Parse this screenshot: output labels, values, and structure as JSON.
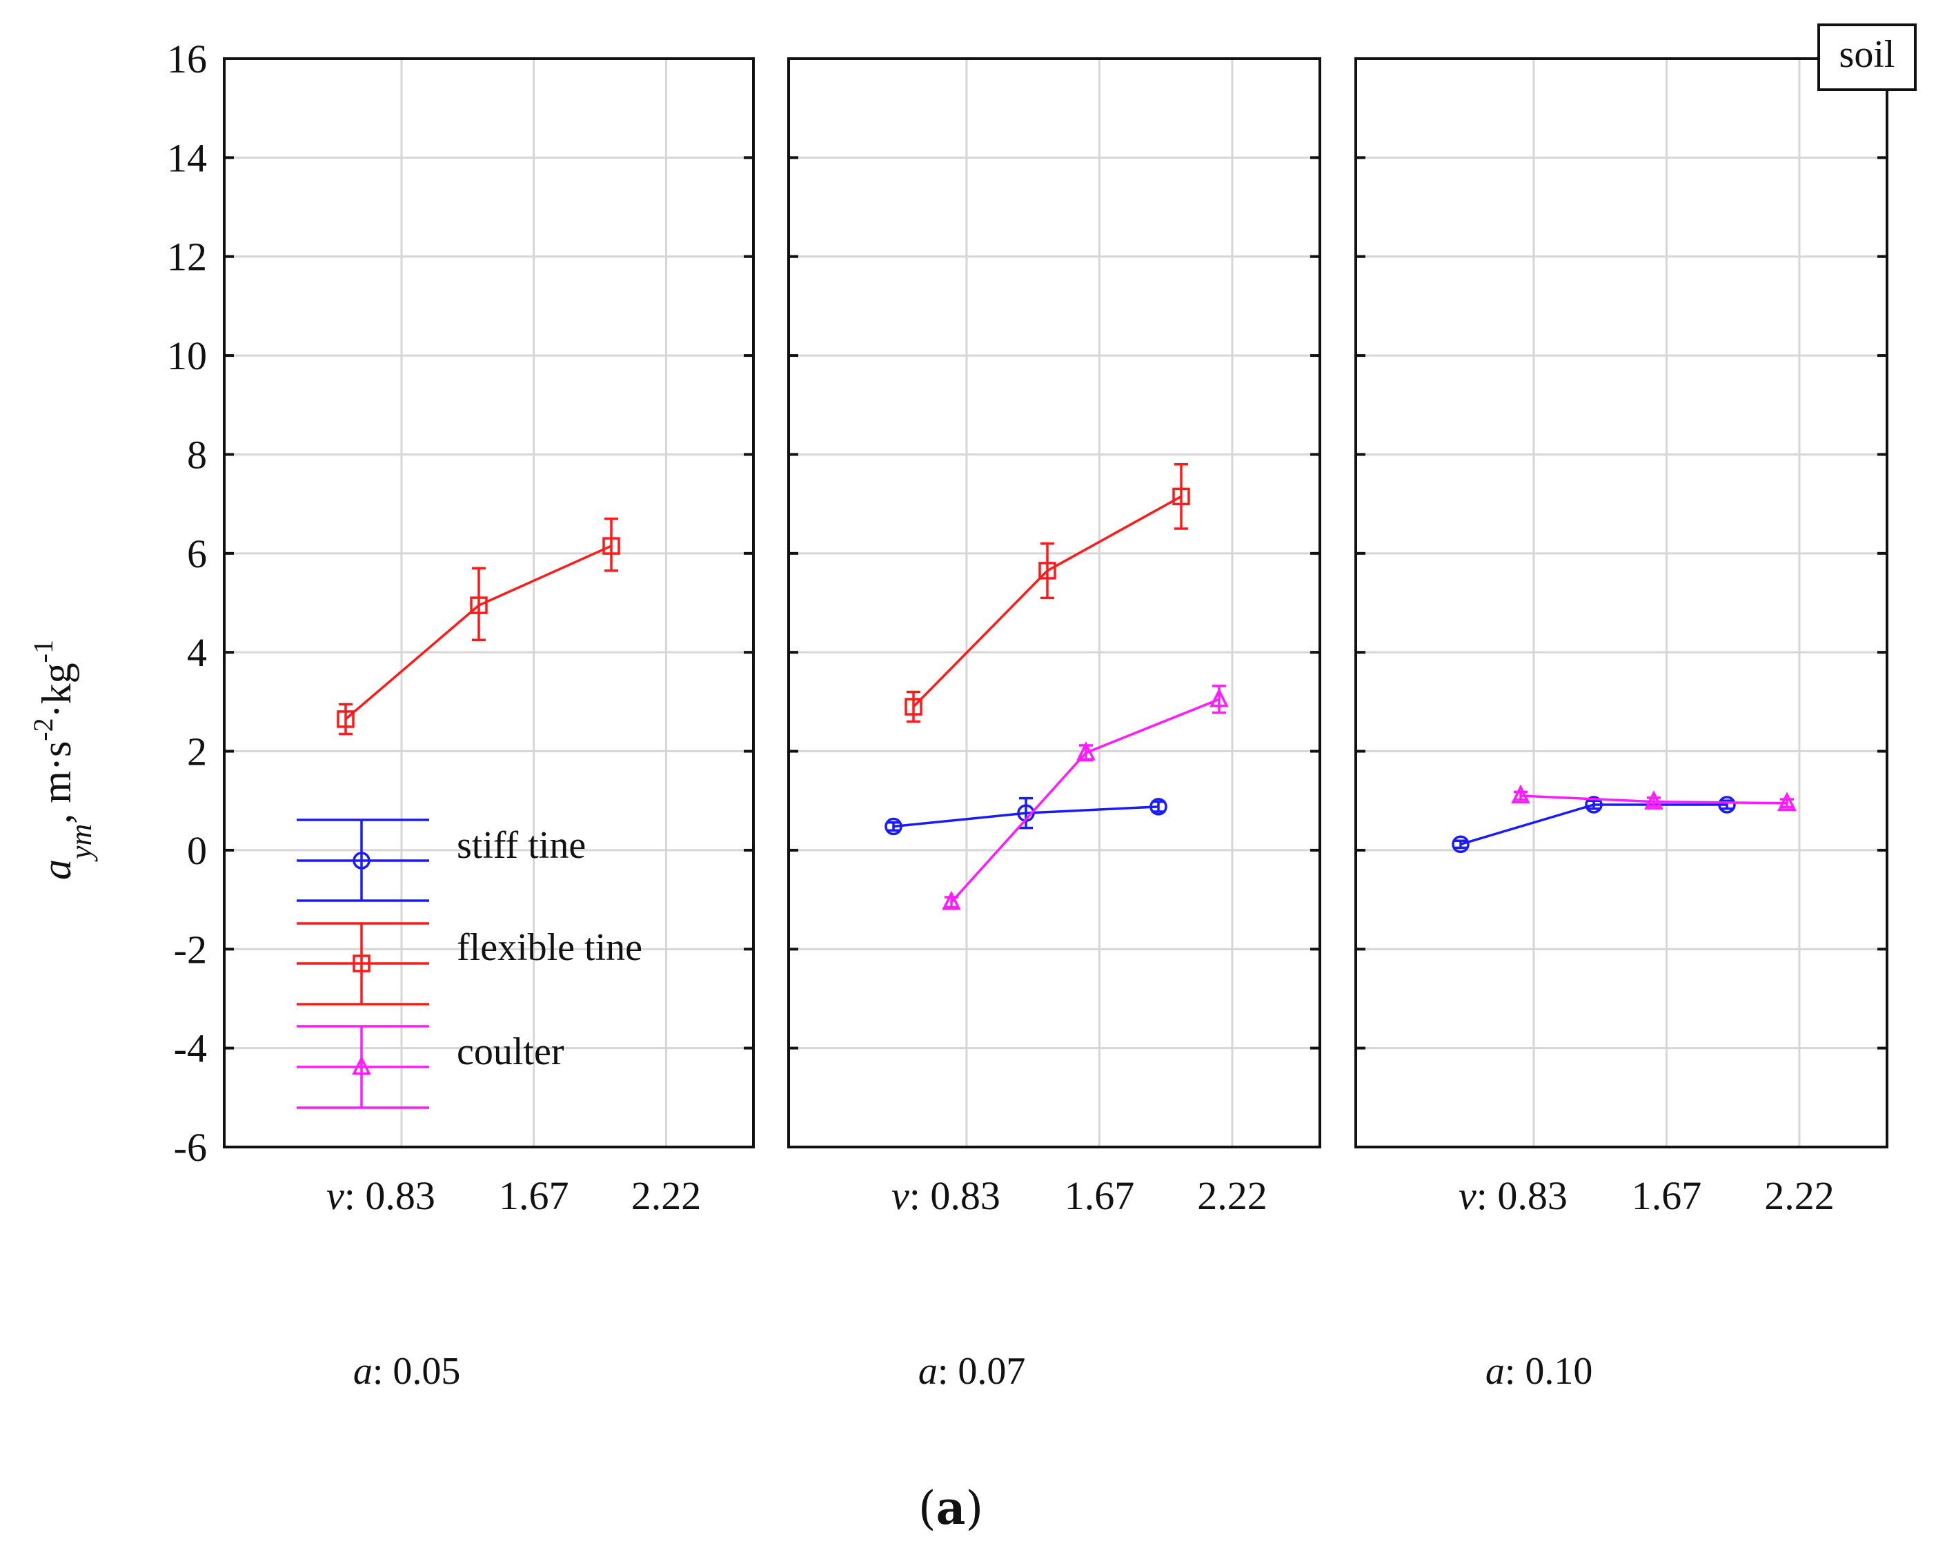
{
  "chart_data": {
    "type": "line",
    "figure_caption": "(a)",
    "corner_label": "soil",
    "ylabel": {
      "symbol": "a",
      "subscript": "ym",
      "units": ", m·s",
      "exp1": "-2",
      "mid": "·kg",
      "exp2": "-1"
    },
    "ylim": [
      -6,
      16
    ],
    "yticks": [
      -6,
      -4,
      -2,
      0,
      2,
      4,
      6,
      8,
      10,
      12,
      14,
      16
    ],
    "ytick_labels": [
      "-6",
      "-4",
      "-2",
      "0",
      "2",
      "4",
      "6",
      "8",
      "10",
      "12",
      "14",
      "16"
    ],
    "x_categories": [
      "0.83",
      "1.67",
      "2.22"
    ],
    "x_var": "v",
    "panel_var": "a",
    "legend": [
      {
        "key": "stiff",
        "name": "stiff tine",
        "color": "#1a1aff",
        "marker": "circle"
      },
      {
        "key": "flexible",
        "name": "flexible tine",
        "color": "#ff1a1a",
        "marker": "square"
      },
      {
        "key": "coulter",
        "name": "coulter",
        "color": "#ff1aff",
        "marker": "triangle"
      }
    ],
    "panels": [
      {
        "label": "0.05",
        "series": [
          {
            "key": "flexible",
            "points": [
              {
                "x": 0.83,
                "y": 2.65,
                "lo": 2.35,
                "hi": 2.95
              },
              {
                "x": 1.67,
                "y": 4.95,
                "lo": 4.25,
                "hi": 5.7
              },
              {
                "x": 2.22,
                "y": 6.15,
                "lo": 5.65,
                "hi": 6.7
              }
            ]
          }
        ]
      },
      {
        "label": "0.07",
        "series": [
          {
            "key": "flexible",
            "points": [
              {
                "x": 0.83,
                "y": 2.9,
                "lo": 2.6,
                "hi": 3.2
              },
              {
                "x": 1.67,
                "y": 5.65,
                "lo": 5.1,
                "hi": 6.2
              },
              {
                "x": 2.22,
                "y": 7.15,
                "lo": 6.5,
                "hi": 7.8
              }
            ]
          },
          {
            "key": "stiff",
            "points": [
              {
                "x": 0.83,
                "y": 0.48,
                "lo": 0.4,
                "hi": 0.56
              },
              {
                "x": 1.67,
                "y": 0.75,
                "lo": 0.45,
                "hi": 1.05
              },
              {
                "x": 2.22,
                "y": 0.88,
                "lo": 0.78,
                "hi": 0.98
              }
            ]
          },
          {
            "key": "coulter",
            "points": [
              {
                "x": 0.83,
                "y": -1.05,
                "lo": -1.15,
                "hi": -0.95
              },
              {
                "x": 1.67,
                "y": 1.97,
                "lo": 1.82,
                "hi": 2.12
              },
              {
                "x": 2.22,
                "y": 3.05,
                "lo": 2.78,
                "hi": 3.32
              }
            ]
          }
        ]
      },
      {
        "label": "0.10",
        "series": [
          {
            "key": "stiff",
            "points": [
              {
                "x": 0.83,
                "y": 0.12,
                "lo": 0.05,
                "hi": 0.19
              },
              {
                "x": 1.67,
                "y": 0.92,
                "lo": 0.84,
                "hi": 1.0
              },
              {
                "x": 2.22,
                "y": 0.92,
                "lo": 0.84,
                "hi": 1.0
              }
            ]
          },
          {
            "key": "coulter",
            "points": [
              {
                "x": 0.83,
                "y": 1.1,
                "lo": 1.02,
                "hi": 1.18
              },
              {
                "x": 1.67,
                "y": 0.98,
                "lo": 0.9,
                "hi": 1.06
              },
              {
                "x": 2.22,
                "y": 0.95,
                "lo": 0.87,
                "hi": 1.03
              }
            ]
          }
        ]
      }
    ]
  }
}
